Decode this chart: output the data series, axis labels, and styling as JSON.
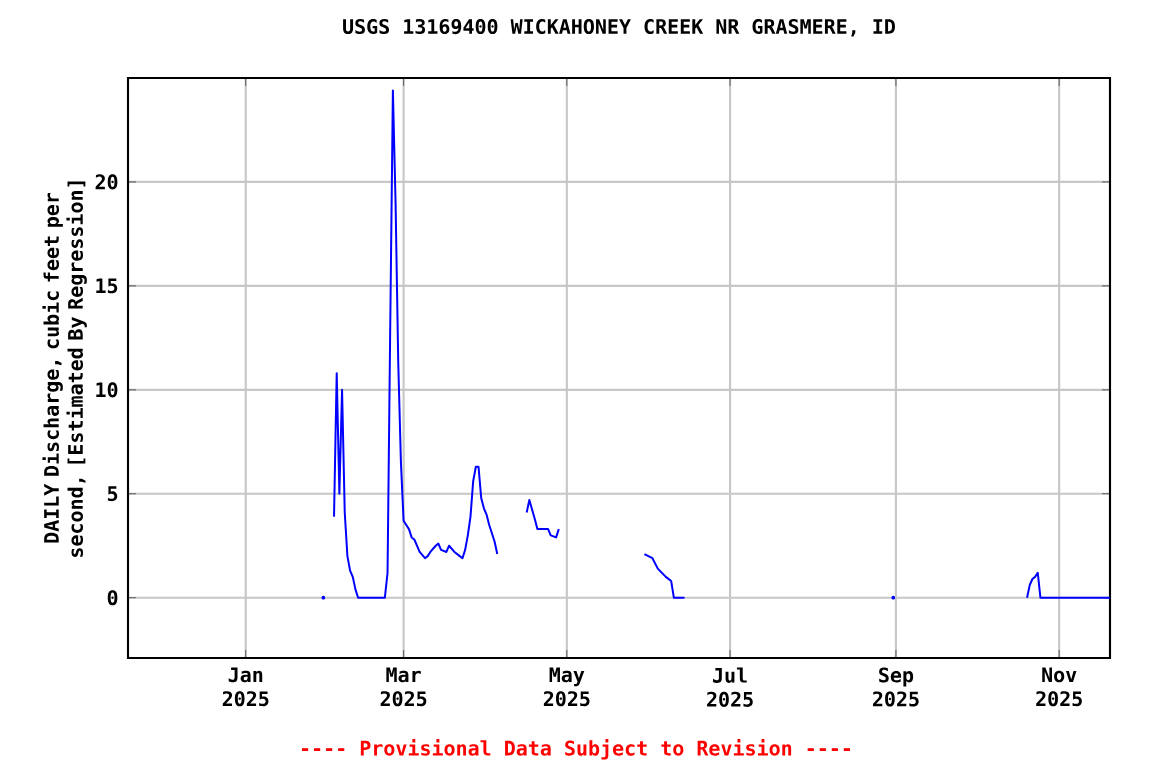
{
  "chart_data": {
    "type": "line",
    "title": "USGS 13169400 WICKAHONEY CREEK NR GRASMERE, ID",
    "ylabel": "DAILY Discharge, cubic feet per second, [Estimated By Regression]",
    "annotations": [
      "---- Provisional Data Subject to Revision ----"
    ],
    "x": [
      "2025-01-30",
      "2025-01-31",
      "2025-02-03",
      "2025-02-04",
      "2025-02-05",
      "2025-02-06",
      "2025-02-07",
      "2025-02-08",
      "2025-02-09",
      "2025-02-10",
      "2025-02-11",
      "2025-02-12",
      "2025-02-22",
      "2025-02-23",
      "2025-02-24",
      "2025-02-25",
      "2025-02-26",
      "2025-02-27",
      "2025-02-28",
      "2025-03-01",
      "2025-03-02",
      "2025-03-03",
      "2025-03-04",
      "2025-03-05",
      "2025-03-06",
      "2025-03-07",
      "2025-03-09",
      "2025-03-10",
      "2025-03-11",
      "2025-03-13",
      "2025-03-14",
      "2025-03-15",
      "2025-03-17",
      "2025-03-18",
      "2025-03-20",
      "2025-03-22",
      "2025-03-23",
      "2025-03-24",
      "2025-03-25",
      "2025-03-26",
      "2025-03-27",
      "2025-03-28",
      "2025-03-29",
      "2025-03-30",
      "2025-03-31",
      "2025-04-01",
      "2025-04-02",
      "2025-04-03",
      "2025-04-04",
      "2025-04-05",
      "2025-04-06",
      "2025-04-16",
      "2025-04-17",
      "2025-04-19",
      "2025-04-20",
      "2025-04-24",
      "2025-04-25",
      "2025-04-27",
      "2025-04-28",
      "2025-04-29",
      "2025-05-30",
      "2025-06-02",
      "2025-06-04",
      "2025-06-07",
      "2025-06-09",
      "2025-06-10",
      "2025-06-14",
      "2025-06-15",
      "2025-08-31",
      "2025-09-01",
      "2025-10-20",
      "2025-10-21",
      "2025-10-22",
      "2025-10-23",
      "2025-10-24",
      "2025-10-25",
      "2025-11-20"
    ],
    "values": [
      0,
      null,
      3.9,
      10.8,
      5.0,
      10.0,
      4.1,
      2.0,
      1.3,
      1.0,
      0.4,
      0,
      0,
      1.2,
      13.0,
      24.4,
      19.0,
      11.3,
      6.5,
      3.7,
      3.5,
      3.3,
      2.9,
      2.8,
      2.5,
      2.2,
      1.9,
      2.0,
      2.2,
      2.5,
      2.6,
      2.3,
      2.2,
      2.5,
      2.2,
      2.0,
      1.9,
      2.3,
      3.0,
      3.9,
      5.6,
      6.3,
      6.3,
      4.8,
      4.3,
      4.0,
      3.5,
      3.1,
      2.7,
      2.1,
      null,
      4.1,
      4.7,
      3.8,
      3.3,
      3.3,
      3.0,
      2.9,
      3.3,
      null,
      2.1,
      1.9,
      1.4,
      1.0,
      0.8,
      0,
      0,
      null,
      0,
      null,
      0,
      0.6,
      0.9,
      1.0,
      1.2,
      0,
      0
    ],
    "color": "#0000ff",
    "xlim": [
      "2024-11-18",
      "2025-11-20"
    ],
    "xticks": [
      {
        "value": "2025-01-01",
        "label": "Jan 2025"
      },
      {
        "value": "2025-03-01",
        "label": "Mar 2025"
      },
      {
        "value": "2025-05-01",
        "label": "May 2025"
      },
      {
        "value": "2025-07-01",
        "label": "Jul 2025"
      },
      {
        "value": "2025-09-01",
        "label": "Sep 2025"
      },
      {
        "value": "2025-11-01",
        "label": "Nov 2025"
      }
    ],
    "ylim": [
      -2.9,
      25
    ],
    "yticks": [
      0,
      5,
      10,
      15,
      20
    ],
    "grid": true
  }
}
